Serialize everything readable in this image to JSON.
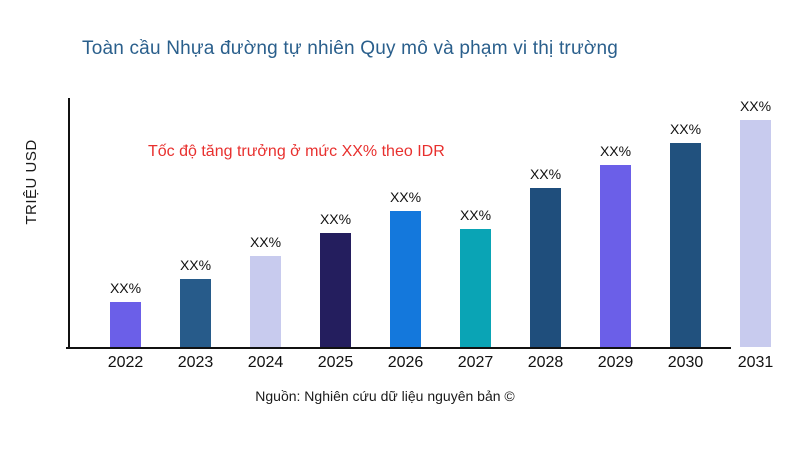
{
  "page": {
    "footer": "Nguồn: Nghiên cứu dữ liệu nguyên bản ©"
  },
  "colors": {
    "title": "#2a5f8c",
    "annotation": "#e8302e",
    "axis": "#111111"
  },
  "chart_data": {
    "type": "bar",
    "title": "Toàn cầu Nhựa đường tự nhiên Quy mô và phạm vi thị trường",
    "ylabel": "TRIỆU USD",
    "xlabel": "",
    "categories": [
      "2022",
      "2023",
      "2024",
      "2025",
      "2026",
      "2027",
      "2028",
      "2029",
      "2030",
      "2031"
    ],
    "values_relative": [
      20,
      30,
      40,
      50,
      60,
      52,
      70,
      80,
      90,
      100
    ],
    "bar_labels": [
      "XX%",
      "XX%",
      "XX%",
      "XX%",
      "XX%",
      "XX%",
      "XX%",
      "XX%",
      "XX%",
      "XX%"
    ],
    "bar_colors": [
      "#6b5fe8",
      "#275b8a",
      "#c8cbee",
      "#241e5e",
      "#1478dc",
      "#0aa4b5",
      "#1f4e7c",
      "#6b5fe8",
      "#21517e",
      "#c8cbee"
    ],
    "annotation": "Tốc độ tăng trưởng ở mức XX% theo IDR",
    "grid": false,
    "legend": false,
    "ylim_shown": false
  }
}
